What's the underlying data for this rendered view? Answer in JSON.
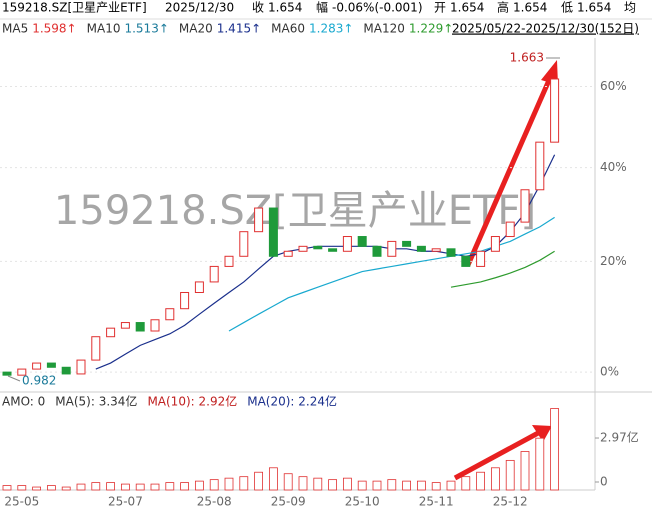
{
  "header": {
    "code": "159218.SZ[卫星产业ETF]",
    "date": "2025/12/30",
    "close_label": "收",
    "close": "1.654",
    "change_label": "幅",
    "change": "-0.06%(-0.001)",
    "open_label": "开",
    "open": "1.654",
    "high_label": "高",
    "high": "1.654",
    "low_label": "低",
    "low": "1.654",
    "avg_label": "均",
    "ma_legend": [
      {
        "name": "MA5",
        "value": "1.598↑",
        "color": "#e03030"
      },
      {
        "name": "MA10",
        "value": "1.513↑",
        "color": "#1a7a9a"
      },
      {
        "name": "MA20",
        "value": "1.415↑",
        "color": "#1a2f8c"
      },
      {
        "name": "MA60",
        "value": "1.283↑",
        "color": "#19a9cf"
      },
      {
        "name": "MA120",
        "value": "1.229↑",
        "color": "#2e9b2e"
      }
    ],
    "range": "2025/05/22-2025/12/30(152日)"
  },
  "watermark": "159218.SZ[卫星产业ETF]",
  "chart_data": [
    {
      "type": "candlestick",
      "log_scale": true,
      "grid": true,
      "up_color": "#e03030",
      "down_color": "#1f9a3a",
      "categories": [
        null,
        "25-05",
        null,
        null,
        null,
        null,
        null,
        null,
        "25-07",
        null,
        null,
        null,
        null,
        null,
        "25-08",
        null,
        null,
        null,
        null,
        "25-09",
        null,
        null,
        null,
        null,
        "25-10",
        null,
        null,
        null,
        null,
        "25-11",
        null,
        null,
        null,
        null,
        "25-12",
        null,
        null,
        null
      ],
      "open": [
        0,
        -0.5,
        0.5,
        1.5,
        0.8,
        -0.3,
        2,
        6,
        7.5,
        8.5,
        7,
        9,
        11,
        14,
        16,
        19,
        21,
        26,
        31,
        21,
        22,
        23,
        22.5,
        22,
        25,
        23,
        21,
        24,
        23,
        22,
        22.5,
        21,
        19,
        22,
        25,
        28,
        35,
        46
      ],
      "close": [
        -0.5,
        0.5,
        1.5,
        0.8,
        -0.3,
        2,
        6,
        7.5,
        8.5,
        7,
        9,
        11,
        14,
        16,
        19,
        21,
        26,
        31,
        21,
        22,
        23,
        22.5,
        22,
        25,
        23,
        21,
        24,
        23,
        22,
        22.5,
        21,
        19,
        22,
        25,
        28,
        35,
        46,
        62
      ],
      "series": [
        {
          "name": "MA20",
          "color": "#1a2f8c",
          "values": [
            null,
            null,
            null,
            null,
            null,
            null,
            0.5,
            1.5,
            3,
            4.5,
            5.5,
            6.5,
            8,
            10,
            12,
            14,
            16,
            18.5,
            21,
            22,
            22.5,
            23,
            23,
            23,
            23,
            23,
            22.5,
            22.5,
            22,
            22,
            21.5,
            21,
            21.5,
            23,
            26,
            30,
            36,
            43
          ]
        },
        {
          "name": "MA60",
          "color": "#19a9cf",
          "values": [
            null,
            null,
            null,
            null,
            null,
            null,
            null,
            null,
            null,
            null,
            null,
            null,
            null,
            null,
            null,
            7,
            8.5,
            10,
            11.5,
            13,
            14,
            15,
            16,
            17,
            18,
            18.5,
            19,
            19.5,
            20,
            20.5,
            21,
            21.5,
            22,
            23,
            24,
            25.5,
            27,
            29
          ]
        },
        {
          "name": "MA120",
          "color": "#2e9b2e",
          "values": [
            null,
            null,
            null,
            null,
            null,
            null,
            null,
            null,
            null,
            null,
            null,
            null,
            null,
            null,
            null,
            null,
            null,
            null,
            null,
            null,
            null,
            null,
            null,
            null,
            null,
            null,
            null,
            null,
            null,
            null,
            15,
            15.5,
            16,
            16.8,
            17.7,
            18.8,
            20.2,
            22
          ]
        }
      ],
      "ylim": [
        -2.9,
        73.3
      ],
      "yticks": [
        {
          "value": 0,
          "label": "0%"
        },
        {
          "value": 20,
          "label": "20%"
        },
        {
          "value": 40,
          "label": "40%"
        },
        {
          "value": 60,
          "label": "60%"
        }
      ],
      "annotations": [
        "1.663",
        "0.982"
      ]
    },
    {
      "type": "bar",
      "color": "#e03030",
      "legend": [
        "AMO: 0",
        "MA(5): 3.34亿",
        "MA(10): 2.92亿",
        "MA(20): 2.24亿"
      ],
      "values": [
        0.3,
        0.3,
        0.2,
        0.3,
        0.2,
        0.4,
        0.5,
        0.5,
        0.4,
        0.4,
        0.4,
        0.5,
        0.5,
        0.6,
        0.7,
        0.8,
        0.9,
        1.2,
        1.5,
        1.1,
        0.9,
        0.8,
        0.7,
        0.8,
        0.6,
        0.6,
        0.7,
        0.6,
        0.6,
        0.5,
        0.6,
        0.9,
        1.2,
        1.5,
        2,
        2.6,
        3.5,
        5.5
      ],
      "ylim": [
        0,
        5.74
      ],
      "yticks": [
        0,
        {
          "value": 2.97,
          "label": "2.97亿"
        }
      ]
    }
  ]
}
